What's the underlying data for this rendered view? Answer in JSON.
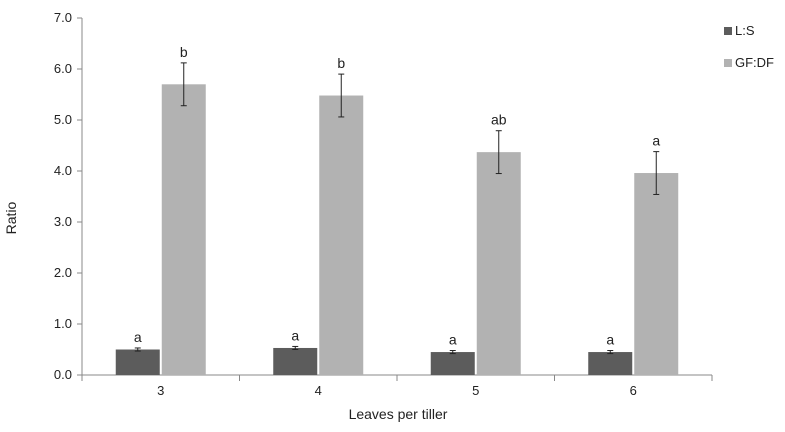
{
  "chart_data": {
    "type": "bar",
    "title": "",
    "xlabel": "Leaves per tiller",
    "ylabel": "Ratio",
    "categories": [
      "3",
      "4",
      "5",
      "6"
    ],
    "ylim": [
      0,
      7
    ],
    "yticks": [
      "0.0",
      "1.0",
      "2.0",
      "3.0",
      "4.0",
      "5.0",
      "6.0",
      "7.0"
    ],
    "grid": false,
    "legend": "right",
    "series": [
      {
        "name": "L:S",
        "color": "#5c5c5c",
        "values": [
          0.5,
          0.53,
          0.45,
          0.45
        ],
        "errors": [
          0.03,
          0.03,
          0.03,
          0.03
        ],
        "labels": [
          "a",
          "a",
          "a",
          "a"
        ]
      },
      {
        "name": "GF:DF",
        "color": "#b2b2b2",
        "values": [
          5.7,
          5.48,
          4.37,
          3.96
        ],
        "errors": [
          0.42,
          0.42,
          0.42,
          0.42
        ],
        "labels": [
          "b",
          "b",
          "ab",
          "a"
        ]
      }
    ]
  }
}
